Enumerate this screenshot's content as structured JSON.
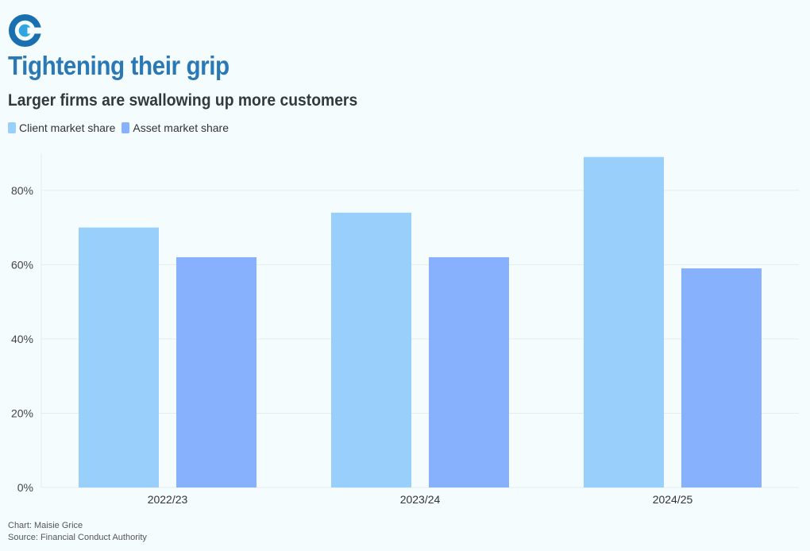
{
  "header": {
    "title": "Tightening their grip",
    "subtitle": "Larger firms are swallowing up more customers"
  },
  "logo": {
    "icon": "publication-logo-icon",
    "colors": [
      "#1a6fb0",
      "#30a5e0"
    ]
  },
  "chart_data": {
    "type": "bar",
    "categories": [
      "2022/23",
      "2023/24",
      "2024/25"
    ],
    "series": [
      {
        "name": "Client market share",
        "values": [
          70,
          74,
          89
        ],
        "color": "#99d0fb"
      },
      {
        "name": "Asset market share",
        "values": [
          62,
          62,
          59
        ],
        "color": "#87b1fd"
      }
    ],
    "ylim": [
      0,
      90
    ],
    "yticks": [
      0,
      20,
      40,
      60,
      80
    ],
    "ytick_labels": [
      "0%",
      "20%",
      "40%",
      "60%",
      "80%"
    ],
    "y_unit": "%",
    "grid": true,
    "legend_position": "top-left"
  },
  "footer": {
    "credit": "Chart: Maisie Grice",
    "source": "Source: Financial Conduct Authority"
  }
}
